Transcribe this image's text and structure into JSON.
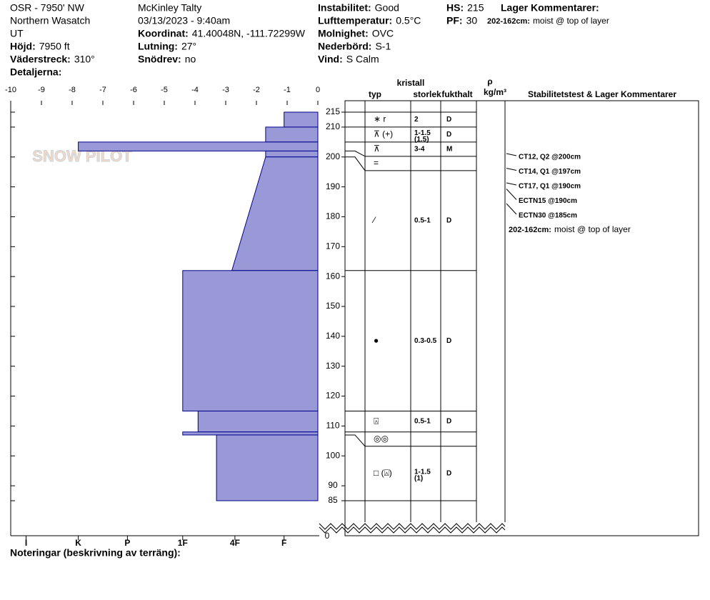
{
  "header": {
    "col1": [
      "OSR - 7950' NW",
      "Northern Wasatch",
      "UT"
    ],
    "fields1": [
      {
        "label": "Höjd:",
        "value": "7950 ft"
      },
      {
        "label": "Väderstreck:",
        "value": "310°"
      },
      {
        "label": "Detaljerna:"
      }
    ],
    "col2": [
      "McKinley Talty",
      "03/13/2023 - 9:40am"
    ],
    "fields2": [
      {
        "label": "Koordinat:",
        "value": "41.40048N, -111.72299W"
      },
      {
        "label": "Lutning:",
        "value": "27°"
      },
      {
        "label": "Snödrev:",
        "value": "no"
      }
    ],
    "fields3": [
      {
        "label": "Instabilitet:",
        "value": "Good"
      },
      {
        "label": "Lufttemperatur:",
        "value": "0.5°C"
      },
      {
        "label": "Molnighet:",
        "value": "OVC"
      },
      {
        "label": "Nederbörd:",
        "value": "S-1"
      },
      {
        "label": "Vind:",
        "value": "S Calm"
      }
    ],
    "fields4": [
      {
        "label": "HS:",
        "value": 215
      },
      {
        "label": "PF:",
        "value": 30
      }
    ],
    "comments_title": "Lager Kommentarer:",
    "comments": [
      {
        "label": "202-162cm:",
        "value": "moist @ top of layer"
      }
    ]
  },
  "logo": "SNOW PILOT",
  "chart_data": {
    "type": "snow-profile",
    "xlim": [
      -10,
      0
    ],
    "xticks": [
      -10,
      -9,
      -8,
      -7,
      -6,
      -5,
      -4,
      -3,
      -2,
      -1,
      0
    ],
    "hardness_ticks": [
      {
        "value": -9.5,
        "label": "I"
      },
      {
        "value": -7.8,
        "label": "K"
      },
      {
        "value": -6.2,
        "label": "P"
      },
      {
        "value": -4.4,
        "label": "1F"
      },
      {
        "value": -2.7,
        "label": "4F"
      },
      {
        "value": -1.1,
        "label": "F"
      }
    ],
    "ylim": [
      85,
      215
    ],
    "yticks": [
      215,
      210,
      200,
      190,
      180,
      170,
      160,
      150,
      140,
      130,
      120,
      110,
      100,
      90,
      85
    ],
    "ybase": 0,
    "color": "#9999d8",
    "edge": "#00008b",
    "columns": {
      "crystal": "kristall",
      "type": "typ",
      "size": "storlek",
      "moisture": "fukthalt",
      "density": "ρ",
      "density_unit": "kg/m³",
      "tests": "Stabilitetstest & Lager Kommentarer"
    },
    "layers": [
      {
        "top": 215,
        "bottom": 210,
        "hardness": -1.1,
        "grain": "∗ r",
        "size": "2",
        "moisture": "D"
      },
      {
        "top": 210,
        "bottom": 205,
        "hardness": -1.7,
        "grain": "⊼ (+)",
        "size": "1-1.5",
        "size2": "(1.5)",
        "moisture": "D"
      },
      {
        "top": 205,
        "bottom": 202,
        "hardness": -7.8,
        "grain": "⊼",
        "size": "3-4",
        "moisture": "M"
      },
      {
        "top": 202,
        "bottom": 200,
        "hardness": -1.7,
        "grain": "="
      },
      {
        "top": 200,
        "bottom": 162,
        "hardness": -1.7,
        "hardness_bottom": -2.8,
        "grain": "⁄",
        "size": "0.5-1",
        "moisture": "D"
      },
      {
        "top": 162,
        "bottom": 115,
        "hardness": -4.4,
        "grain": "●",
        "size": "0.3-0.5",
        "moisture": "D"
      },
      {
        "top": 115,
        "bottom": 108,
        "hardness": -3.9,
        "grain": "⍓",
        "size": "0.5-1",
        "moisture": "D"
      },
      {
        "top": 108,
        "bottom": 107,
        "hardness": -4.4,
        "grain": "◎◎"
      },
      {
        "top": 107,
        "bottom": 85,
        "hardness": -3.3,
        "grain": "□ (⍓)",
        "size": "1-1.5",
        "size2": "(1)",
        "moisture": "D"
      }
    ],
    "tests": [
      "CT12, Q2 @200cm",
      "CT14, Q1 @197cm",
      "CT17, Q1 @190cm",
      "ECTN15 @190cm",
      "ECTN30 @185cm"
    ]
  },
  "notes_title": "Noteringar (beskrivning av terräng):"
}
